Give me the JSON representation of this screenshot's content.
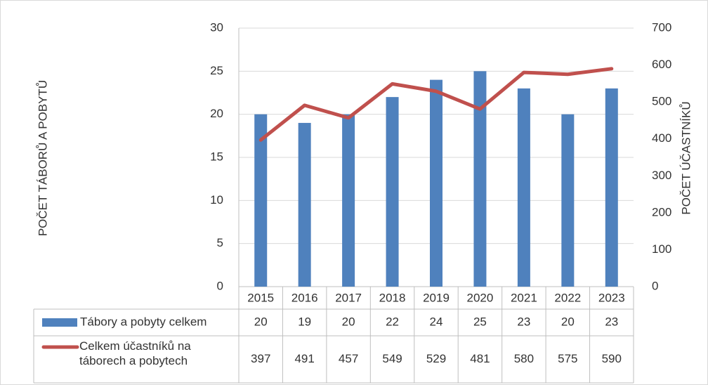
{
  "chart_data": {
    "type": "bar_line",
    "ylabel": "POČET TÁBORŮ A POBYTŮ",
    "y2label": "POČET ÚČASTNÍKŮ",
    "categories": [
      "2015",
      "2016",
      "2017",
      "2018",
      "2019",
      "2020",
      "2021",
      "2022",
      "2023"
    ],
    "series": [
      {
        "name": "Tábory a pobyty celkem",
        "color": "#4f81bd",
        "type": "bar",
        "values": [
          20,
          19,
          20,
          22,
          24,
          25,
          23,
          20,
          23
        ]
      },
      {
        "name": "Celkem účastníků na táborech a pobytech",
        "color": "#c0504d",
        "type": "line",
        "axis": "y2",
        "values": [
          397,
          491,
          457,
          549,
          529,
          481,
          580,
          575,
          590
        ]
      }
    ],
    "ylim": [
      0,
      30
    ],
    "yticks": [
      0,
      5,
      10,
      15,
      20,
      25,
      30
    ],
    "y2lim": [
      0,
      700
    ],
    "y2ticks": [
      0,
      100,
      200,
      300,
      400,
      500,
      600,
      700
    ],
    "grid": true,
    "data_table": true
  }
}
